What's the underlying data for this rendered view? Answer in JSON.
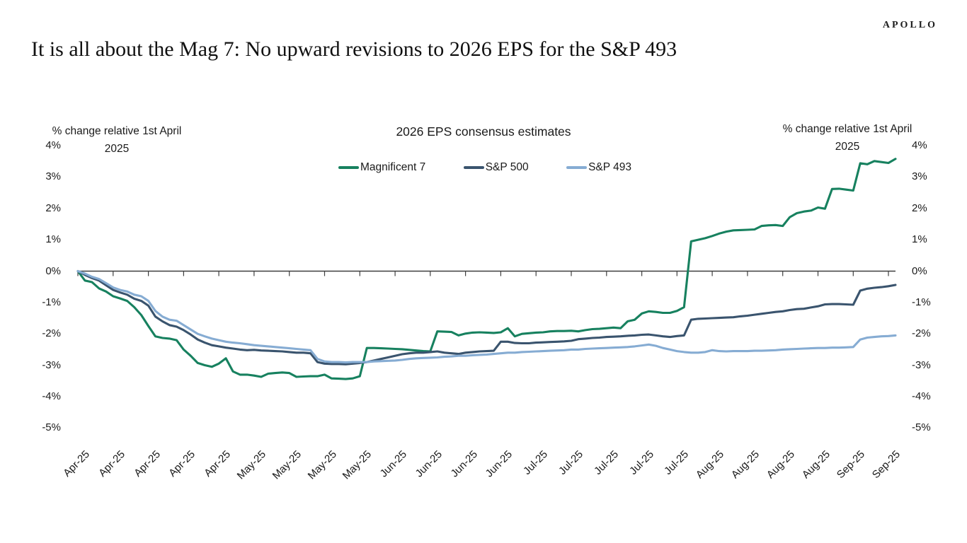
{
  "header": {
    "logo": "APOLLO",
    "title": "It is all about the Mag 7: No upward revisions to 2026 EPS for the S&P 493"
  },
  "chart_data": {
    "type": "line",
    "title": "2026 EPS consensus estimates",
    "y_axis_header": [
      "% change relative 1st April",
      "2025"
    ],
    "xlabel": "",
    "ylabel": "% change relative 1st April 2025",
    "ylim": [
      -5,
      4
    ],
    "ytick_labels": [
      "4%",
      "3%",
      "2%",
      "1%",
      "0%",
      "-1%",
      "-2%",
      "-3%",
      "-4%",
      "-5%"
    ],
    "ytick_values": [
      4,
      3,
      2,
      1,
      0,
      -1,
      -2,
      -3,
      -4,
      -5
    ],
    "xticklabels": [
      "Apr-25",
      "Apr-25",
      "Apr-25",
      "Apr-25",
      "Apr-25",
      "May-25",
      "May-25",
      "May-25",
      "May-25",
      "Jun-25",
      "Jun-25",
      "Jun-25",
      "Jun-25",
      "Jul-25",
      "Jul-25",
      "Jul-25",
      "Jul-25",
      "Jul-25",
      "Aug-25",
      "Aug-25",
      "Aug-25",
      "Aug-25",
      "Sep-25",
      "Sep-25"
    ],
    "x_points_per_tick": 5,
    "grid": false,
    "legend_position": "top-center",
    "axis_color": "#3f3f3f",
    "text_color": "#1a1a1a",
    "series": [
      {
        "name": "Magnificent 7",
        "color": "#17815f",
        "values": [
          0,
          -0.3,
          -0.35,
          -0.55,
          -0.65,
          -0.8,
          -0.87,
          -0.95,
          -1.15,
          -1.4,
          -1.75,
          -2.08,
          -2.13,
          -2.15,
          -2.2,
          -2.5,
          -2.7,
          -2.93,
          -3.0,
          -3.05,
          -2.95,
          -2.78,
          -3.2,
          -3.3,
          -3.3,
          -3.33,
          -3.37,
          -3.27,
          -3.25,
          -3.23,
          -3.25,
          -3.37,
          -3.36,
          -3.35,
          -3.35,
          -3.3,
          -3.42,
          -3.43,
          -3.44,
          -3.42,
          -3.35,
          -2.45,
          -2.45,
          -2.46,
          -2.47,
          -2.48,
          -2.49,
          -2.51,
          -2.53,
          -2.55,
          -2.56,
          -1.92,
          -1.93,
          -1.94,
          -2.05,
          -1.99,
          -1.96,
          -1.95,
          -1.96,
          -1.97,
          -1.95,
          -1.82,
          -2.08,
          -2.0,
          -1.98,
          -1.96,
          -1.95,
          -1.92,
          -1.91,
          -1.91,
          -1.9,
          -1.92,
          -1.88,
          -1.85,
          -1.84,
          -1.82,
          -1.8,
          -1.82,
          -1.6,
          -1.55,
          -1.35,
          -1.28,
          -1.3,
          -1.33,
          -1.33,
          -1.27,
          -1.15,
          0.95,
          1.0,
          1.05,
          1.12,
          1.2,
          1.26,
          1.3,
          1.31,
          1.32,
          1.33,
          1.44,
          1.46,
          1.47,
          1.44,
          1.72,
          1.85,
          1.9,
          1.93,
          2.03,
          1.99,
          2.62,
          2.63,
          2.6,
          2.57,
          3.44,
          3.41,
          3.51,
          3.48,
          3.45,
          3.58
        ]
      },
      {
        "name": "S&P 500",
        "color": "#3a546e",
        "values": [
          0,
          -0.12,
          -0.22,
          -0.3,
          -0.45,
          -0.6,
          -0.68,
          -0.75,
          -0.88,
          -0.95,
          -1.1,
          -1.45,
          -1.6,
          -1.72,
          -1.77,
          -1.88,
          -2.02,
          -2.18,
          -2.28,
          -2.36,
          -2.4,
          -2.44,
          -2.47,
          -2.5,
          -2.52,
          -2.51,
          -2.53,
          -2.54,
          -2.55,
          -2.56,
          -2.58,
          -2.6,
          -2.6,
          -2.62,
          -2.9,
          -2.95,
          -2.96,
          -2.96,
          -2.97,
          -2.95,
          -2.93,
          -2.9,
          -2.85,
          -2.8,
          -2.75,
          -2.7,
          -2.65,
          -2.62,
          -2.6,
          -2.6,
          -2.58,
          -2.56,
          -2.6,
          -2.62,
          -2.64,
          -2.6,
          -2.58,
          -2.56,
          -2.55,
          -2.54,
          -2.25,
          -2.25,
          -2.29,
          -2.3,
          -2.3,
          -2.28,
          -2.27,
          -2.26,
          -2.25,
          -2.24,
          -2.22,
          -2.17,
          -2.15,
          -2.13,
          -2.12,
          -2.1,
          -2.09,
          -2.08,
          -2.06,
          -2.05,
          -2.03,
          -2.02,
          -2.05,
          -2.08,
          -2.1,
          -2.07,
          -2.05,
          -1.55,
          -1.52,
          -1.51,
          -1.5,
          -1.49,
          -1.48,
          -1.47,
          -1.44,
          -1.42,
          -1.39,
          -1.36,
          -1.33,
          -1.3,
          -1.28,
          -1.24,
          -1.21,
          -1.2,
          -1.16,
          -1.12,
          -1.06,
          -1.05,
          -1.05,
          -1.06,
          -1.07,
          -0.62,
          -0.56,
          -0.53,
          -0.51,
          -0.48,
          -0.44
        ]
      },
      {
        "name": "S&P 493",
        "color": "#86acd3",
        "values": [
          0,
          -0.08,
          -0.18,
          -0.25,
          -0.38,
          -0.52,
          -0.6,
          -0.65,
          -0.75,
          -0.8,
          -0.95,
          -1.27,
          -1.45,
          -1.55,
          -1.58,
          -1.72,
          -1.86,
          -2.0,
          -2.08,
          -2.15,
          -2.2,
          -2.25,
          -2.28,
          -2.3,
          -2.33,
          -2.36,
          -2.38,
          -2.4,
          -2.42,
          -2.44,
          -2.46,
          -2.48,
          -2.5,
          -2.52,
          -2.8,
          -2.88,
          -2.9,
          -2.9,
          -2.91,
          -2.9,
          -2.9,
          -2.9,
          -2.88,
          -2.87,
          -2.86,
          -2.85,
          -2.83,
          -2.8,
          -2.78,
          -2.77,
          -2.76,
          -2.75,
          -2.73,
          -2.72,
          -2.7,
          -2.7,
          -2.68,
          -2.67,
          -2.66,
          -2.64,
          -2.62,
          -2.6,
          -2.6,
          -2.58,
          -2.57,
          -2.56,
          -2.55,
          -2.54,
          -2.53,
          -2.52,
          -2.5,
          -2.5,
          -2.48,
          -2.47,
          -2.46,
          -2.45,
          -2.44,
          -2.43,
          -2.42,
          -2.4,
          -2.37,
          -2.34,
          -2.38,
          -2.45,
          -2.5,
          -2.55,
          -2.58,
          -2.6,
          -2.6,
          -2.58,
          -2.52,
          -2.55,
          -2.56,
          -2.55,
          -2.55,
          -2.55,
          -2.54,
          -2.54,
          -2.53,
          -2.52,
          -2.5,
          -2.49,
          -2.48,
          -2.47,
          -2.46,
          -2.45,
          -2.45,
          -2.44,
          -2.44,
          -2.43,
          -2.42,
          -2.18,
          -2.12,
          -2.1,
          -2.08,
          -2.07,
          -2.05
        ]
      }
    ]
  }
}
